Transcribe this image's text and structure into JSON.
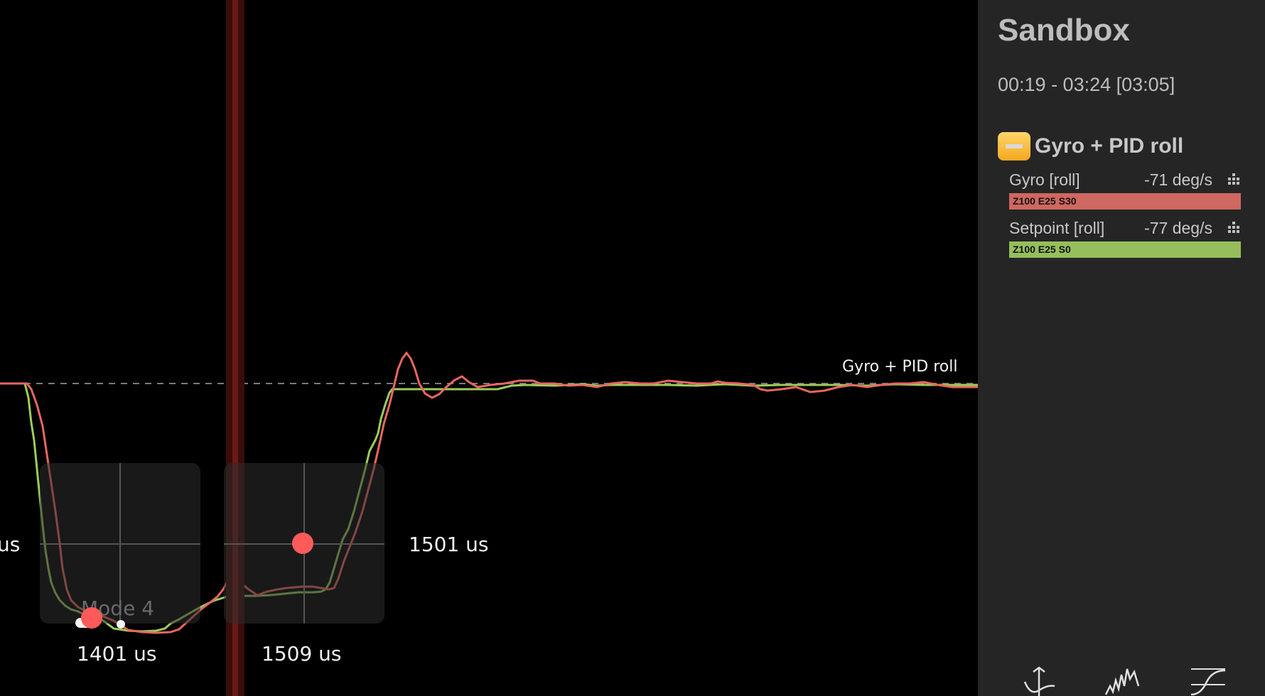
{
  "panel": {
    "title": "Sandbox",
    "time_range": "00:19 - 03:24 [03:05]",
    "group": {
      "name": "Gyro + PID roll",
      "fields": [
        {
          "name": "Gyro [roll]",
          "value": "-71 deg/s",
          "settings": "Z100 E25 S30",
          "color": "#cf6860"
        },
        {
          "name": "Setpoint [roll]",
          "value": "-77 deg/s",
          "settings": "Z100 E25 S0",
          "color": "#96be5c"
        }
      ]
    },
    "bottom_icons": [
      "pid-analyser-icon",
      "spectrum-icon",
      "curves-icon"
    ]
  },
  "graph": {
    "curve_label": "Gyro + PID roll",
    "stick_left": {
      "label": "1401 us",
      "mode": "Mode 4"
    },
    "stick_right": {
      "label": "1509 us",
      "side_label": "1501 us"
    },
    "edge_label": "us",
    "colors": {
      "gyro": "#e8675f",
      "setpoint": "#9ccc5c",
      "cursor": "#6a1a14"
    }
  }
}
